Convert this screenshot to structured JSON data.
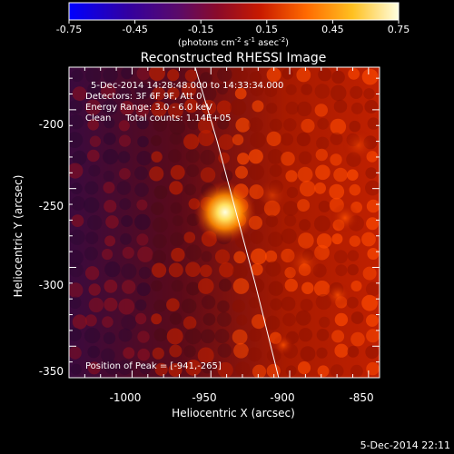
{
  "colorbar": {
    "ticks": [
      "-0.75",
      "-0.45",
      "-0.15",
      "0.15",
      "0.45",
      "0.75"
    ],
    "units_main": "(photons cm",
    "units_exp1": "-2",
    "units_mid": " s",
    "units_exp2": "-1",
    "units_end": " asec",
    "units_exp3": "-2",
    "units_close": ")"
  },
  "plot": {
    "title": "Reconstructed RHESSI Image",
    "xlabel": "Heliocentric X (arcsec)",
    "ylabel": "Heliocentric Y (arcsec)",
    "xticks": [
      "-1000",
      "-950",
      "-900",
      "-850"
    ],
    "yticks": [
      "-200",
      "-250",
      "-300",
      "-350"
    ]
  },
  "annotations": {
    "time_range": "5-Dec-2014 14:28:48.000 to 14:33:34.000",
    "detectors": "Detectors: 3F 6F 9F, Att 0",
    "energy": "Energy Range: 3.0 - 6.0 keV",
    "clean": "Clean     Total counts: 1.14E+05",
    "peak": "Position of Peak = [-941,-265]"
  },
  "footer": {
    "timestamp": "5-Dec-2014 22:11"
  },
  "colors": {
    "colorbar_stops": [
      "#0000ff",
      "#3300a0",
      "#5a0a6a",
      "#8a0a2a",
      "#c81a00",
      "#ff6a00",
      "#ffc020",
      "#ffffe0"
    ],
    "axes": "#ffffff"
  },
  "chart_data": {
    "type": "heatmap",
    "title": "Reconstructed RHESSI Image",
    "xlabel": "Heliocentric X (arcsec)",
    "ylabel": "Heliocentric Y (arcsec)",
    "xlim": [
      -1040,
      -843
    ],
    "ylim": [
      -370,
      -173
    ],
    "colorbar_range": [
      -0.75,
      0.75
    ],
    "peak": {
      "x": -941,
      "y": -265
    },
    "limb_curve_points": [
      [
        -960,
        -173
      ],
      [
        -946,
        -220
      ],
      [
        -934,
        -265
      ],
      [
        -922,
        -310
      ],
      [
        -907,
        -370
      ]
    ]
  }
}
